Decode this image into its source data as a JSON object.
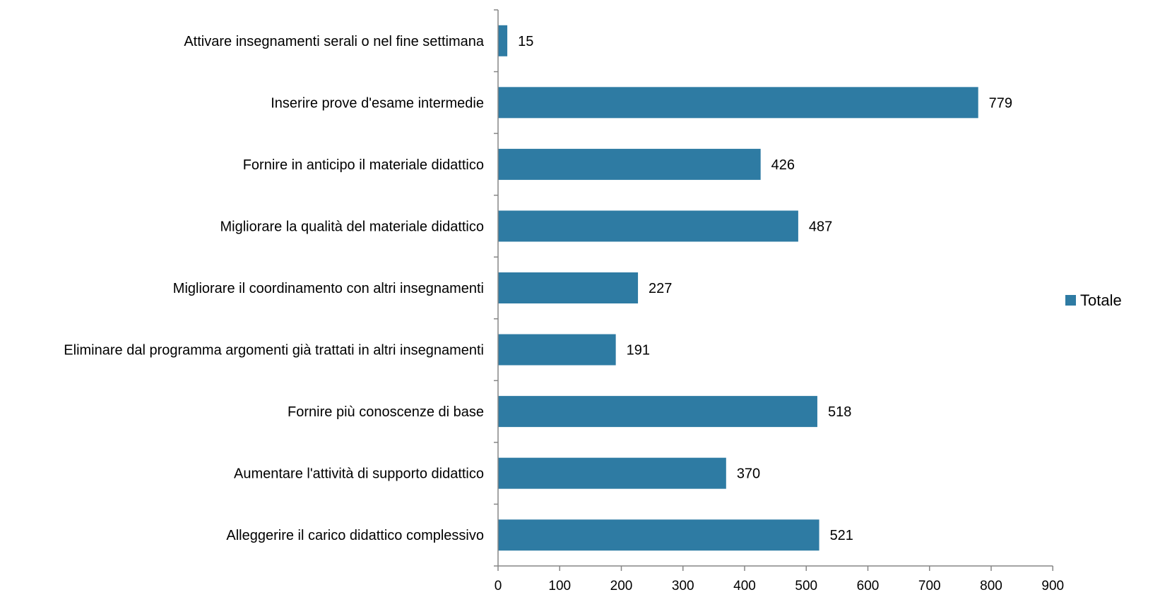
{
  "chart_data": {
    "type": "bar",
    "orientation": "horizontal",
    "categories": [
      "Attivare insegnamenti serali o nel fine settimana",
      "Inserire prove d'esame intermedie",
      "Fornire in anticipo il materiale didattico",
      "Migliorare la qualità del materiale didattico",
      "Migliorare il coordinamento con altri insegnamenti",
      "Eliminare dal programma argomenti già trattati in altri insegnamenti",
      "Fornire più conoscenze di base",
      "Aumentare l'attività di supporto didattico",
      "Alleggerire il carico didattico complessivo"
    ],
    "series": [
      {
        "name": "Totale",
        "values": [
          15,
          779,
          426,
          487,
          227,
          191,
          518,
          370,
          521
        ],
        "color": "#2E7BA3"
      }
    ],
    "xticks": [
      "0",
      "100",
      "200",
      "300",
      "400",
      "500",
      "600",
      "700",
      "800",
      "900"
    ],
    "xlim": [
      0,
      900
    ],
    "title": "",
    "xlabel": "",
    "ylabel": "",
    "grid": false,
    "legend_position": "right"
  }
}
